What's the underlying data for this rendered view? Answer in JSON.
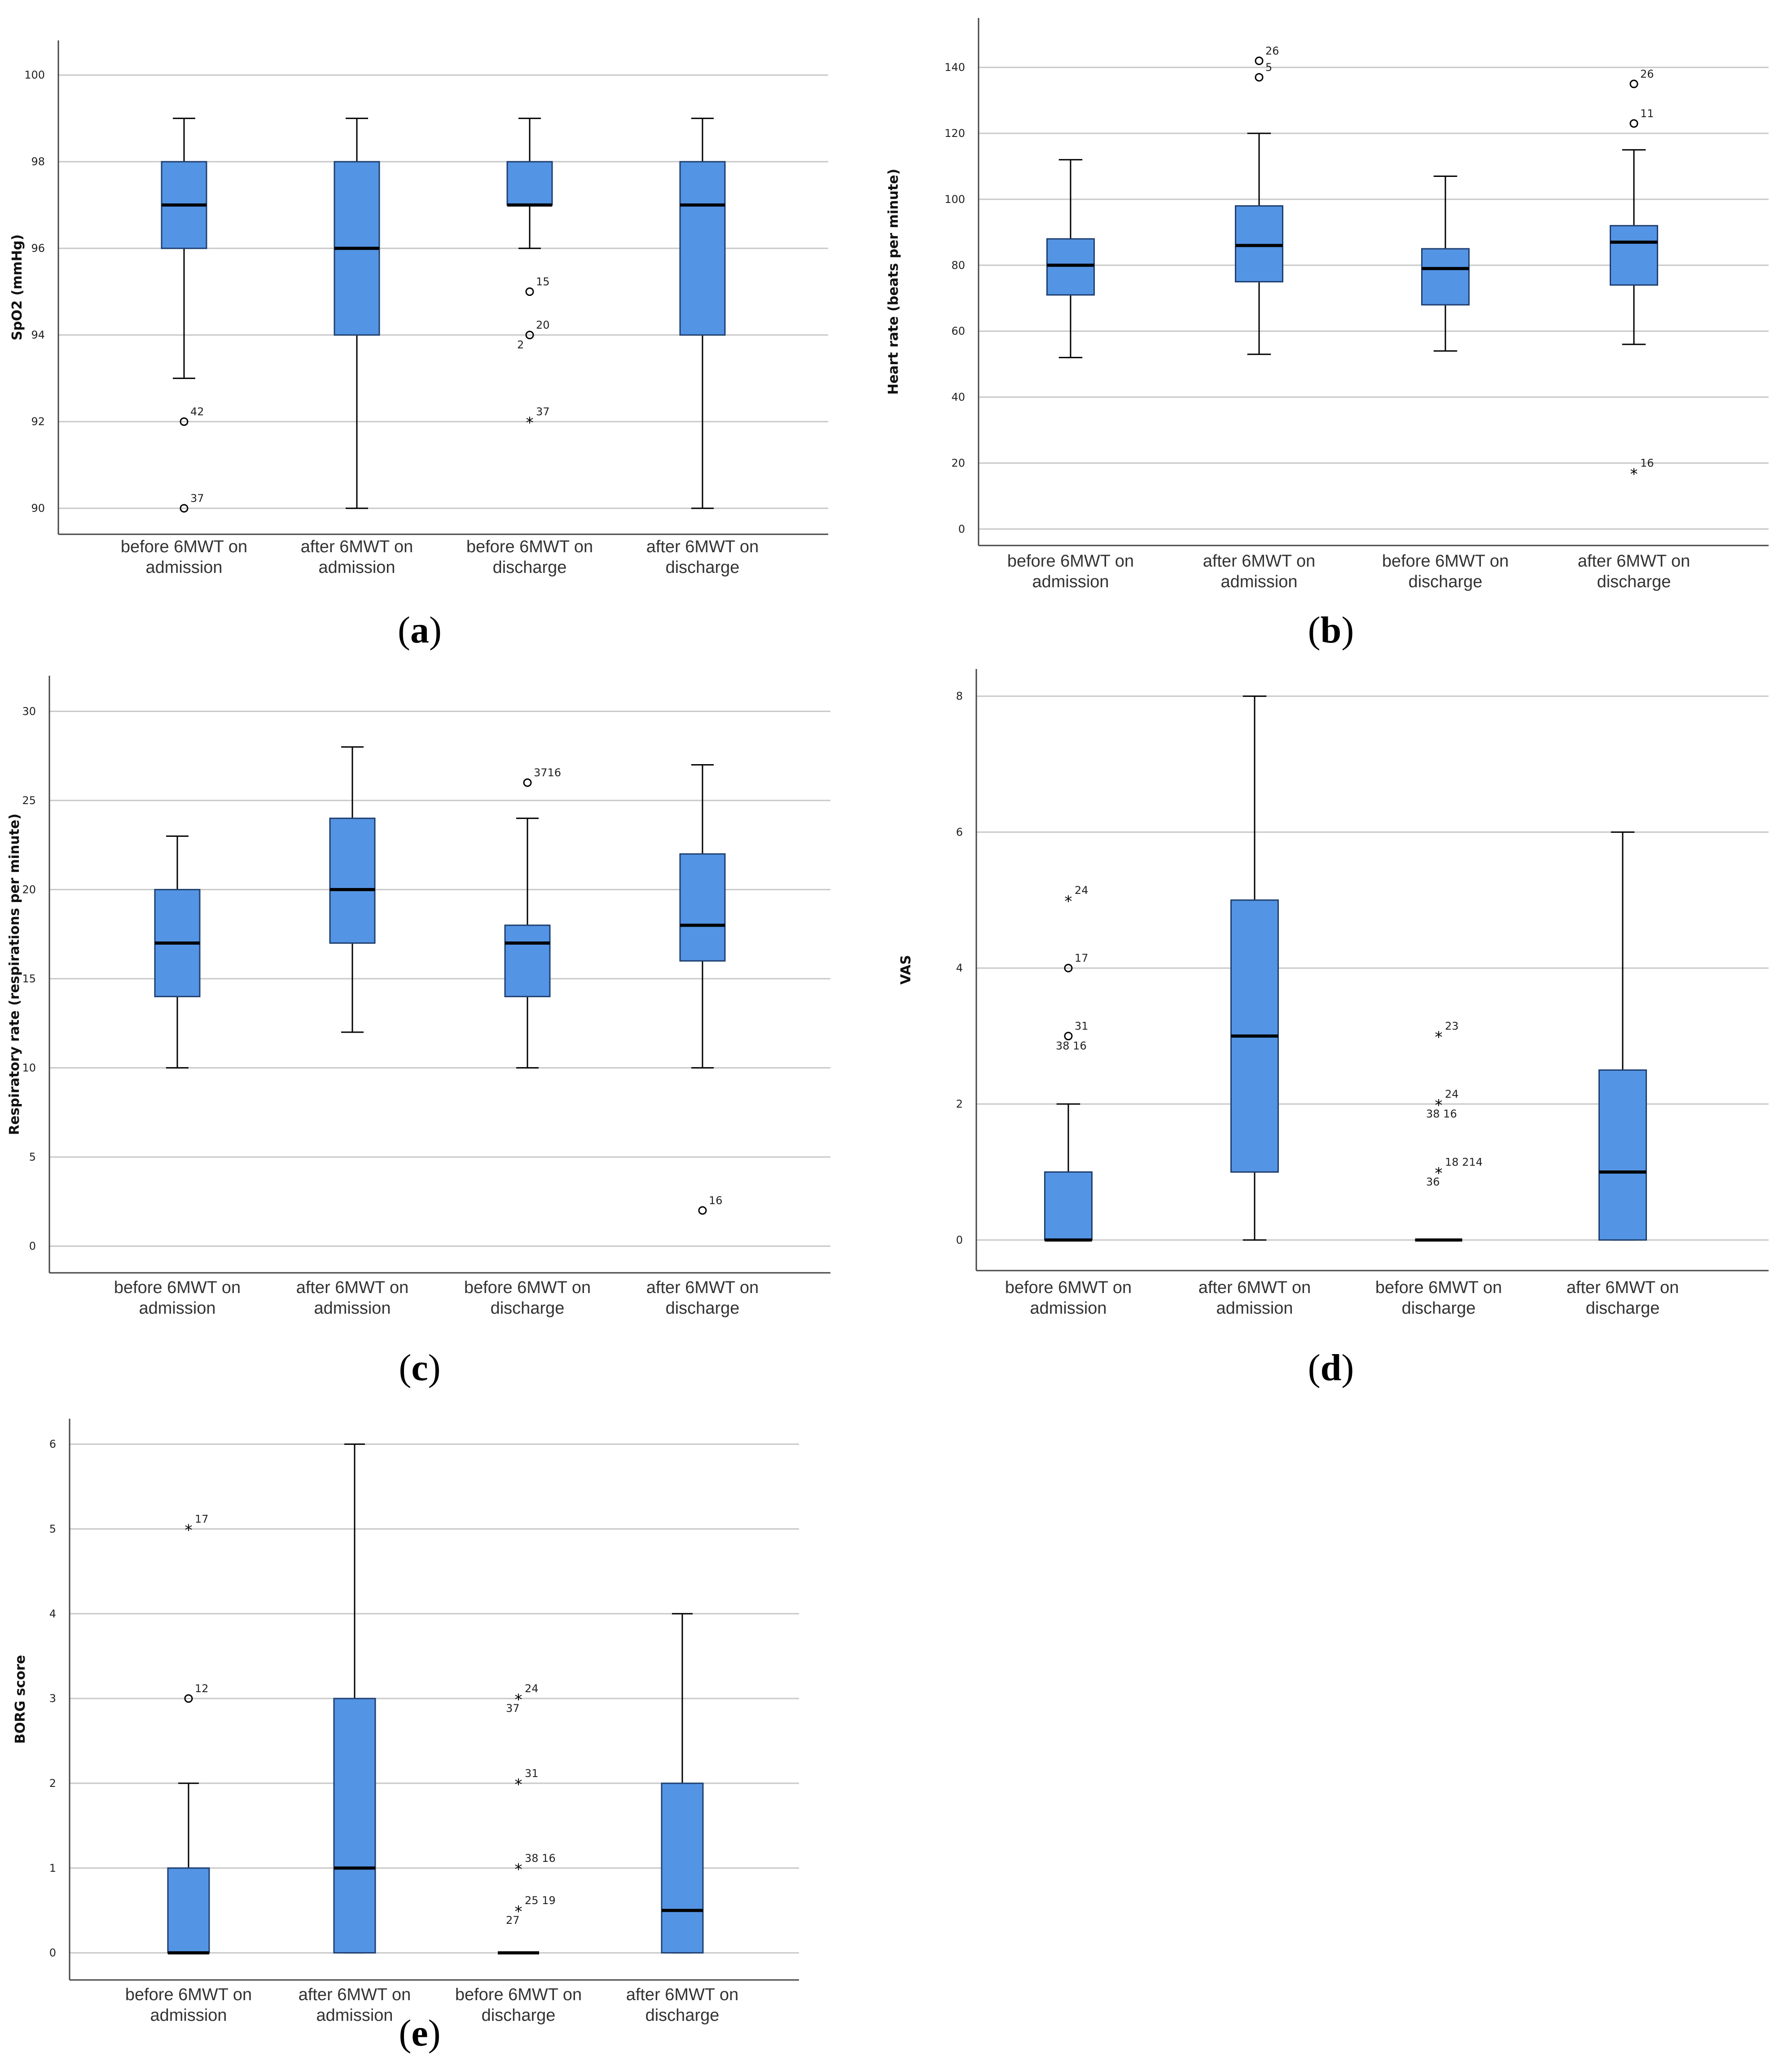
{
  "colors": {
    "box_fill": "#5494e4",
    "box_stroke": "#1f3f6f",
    "grid": "#c8c8c8",
    "axis": "#444444"
  },
  "chart_data": [
    {
      "id": "a",
      "type": "box",
      "caption": "a",
      "ylabel": "SpO2 (mmHg)",
      "ylim": [
        89.4,
        100.8
      ],
      "yticks": [
        90,
        92,
        94,
        96,
        98,
        100
      ],
      "categories": [
        "before 6MWT on admission",
        "after 6MWT on admission",
        "before 6MWT on discharge",
        "after 6MWT on discharge"
      ],
      "boxes": [
        {
          "whisker_low": 93,
          "q1": 96,
          "median": 97,
          "q3": 98,
          "whisker_high": 99,
          "outliers": [
            {
              "value": 92,
              "marker": "circle",
              "labels": [
                "42"
              ]
            },
            {
              "value": 90,
              "marker": "circle",
              "labels": [
                "37"
              ]
            }
          ]
        },
        {
          "whisker_low": 90,
          "q1": 94,
          "median": 96,
          "q3": 98,
          "whisker_high": 99,
          "outliers": []
        },
        {
          "whisker_low": 96,
          "q1": 97,
          "median": 97,
          "q3": 98,
          "whisker_high": 99,
          "outliers": [
            {
              "value": 95,
              "marker": "circle",
              "labels": [
                "15"
              ]
            },
            {
              "value": 94,
              "marker": "circle",
              "labels": [
                "20",
                "2"
              ]
            },
            {
              "value": 92,
              "marker": "star",
              "labels": [
                "37"
              ]
            }
          ]
        },
        {
          "whisker_low": 90,
          "q1": 94,
          "median": 97,
          "q3": 98,
          "whisker_high": 99,
          "outliers": []
        }
      ]
    },
    {
      "id": "b",
      "type": "box",
      "caption": "b",
      "ylabel": "Heart rate (beats per minute)",
      "ylim": [
        -5,
        155
      ],
      "yticks": [
        0,
        20,
        40,
        60,
        80,
        100,
        120,
        140
      ],
      "categories": [
        "before 6MWT on admission",
        "after 6MWT on admission",
        "before 6MWT on discharge",
        "after 6MWT on discharge"
      ],
      "boxes": [
        {
          "whisker_low": 52,
          "q1": 71,
          "median": 80,
          "q3": 88,
          "whisker_high": 112,
          "outliers": []
        },
        {
          "whisker_low": 53,
          "q1": 75,
          "median": 86,
          "q3": 98,
          "whisker_high": 120,
          "outliers": [
            {
              "value": 142,
              "marker": "circle",
              "labels": [
                "26"
              ]
            },
            {
              "value": 137,
              "marker": "circle",
              "labels": [
                "5"
              ]
            }
          ]
        },
        {
          "whisker_low": 54,
          "q1": 68,
          "median": 79,
          "q3": 85,
          "whisker_high": 107,
          "outliers": []
        },
        {
          "whisker_low": 56,
          "q1": 74,
          "median": 87,
          "q3": 92,
          "whisker_high": 115,
          "outliers": [
            {
              "value": 135,
              "marker": "circle",
              "labels": [
                "26"
              ]
            },
            {
              "value": 123,
              "marker": "circle",
              "labels": [
                "11"
              ]
            },
            {
              "value": 17,
              "marker": "star",
              "labels": [
                "16"
              ]
            }
          ]
        }
      ]
    },
    {
      "id": "c",
      "type": "box",
      "caption": "c",
      "ylabel": "Respiratory rate (respirations per minute)",
      "ylim": [
        -1.5,
        32
      ],
      "yticks": [
        0,
        5,
        10,
        15,
        20,
        25,
        30
      ],
      "categories": [
        "before 6MWT on admission",
        "after 6MWT on admission",
        "before 6MWT on discharge",
        "after 6MWT on discharge"
      ],
      "boxes": [
        {
          "whisker_low": 10,
          "q1": 14,
          "median": 17,
          "q3": 20,
          "whisker_high": 23,
          "outliers": []
        },
        {
          "whisker_low": 12,
          "q1": 17,
          "median": 20,
          "q3": 24,
          "whisker_high": 28,
          "outliers": []
        },
        {
          "whisker_low": 10,
          "q1": 14,
          "median": 17,
          "q3": 18,
          "whisker_high": 24,
          "outliers": [
            {
              "value": 26,
              "marker": "circle",
              "labels": [
                "3716"
              ]
            }
          ]
        },
        {
          "whisker_low": 10,
          "q1": 16,
          "median": 18,
          "q3": 22,
          "whisker_high": 27,
          "outliers": [
            {
              "value": 2,
              "marker": "circle",
              "labels": [
                "16"
              ]
            }
          ]
        }
      ]
    },
    {
      "id": "d",
      "type": "box",
      "caption": "d",
      "ylabel": "VAS",
      "ylim": [
        -0.45,
        8.4
      ],
      "yticks": [
        0,
        2,
        4,
        6,
        8
      ],
      "categories": [
        "before 6MWT on admission",
        "after 6MWT on admission",
        "before 6MWT on discharge",
        "after 6MWT on discharge"
      ],
      "boxes": [
        {
          "whisker_low": 0,
          "q1": 0,
          "median": 0,
          "q3": 1,
          "whisker_high": 2,
          "outliers": [
            {
              "value": 5,
              "marker": "star",
              "labels": [
                "24"
              ]
            },
            {
              "value": 4,
              "marker": "circle",
              "labels": [
                "17"
              ]
            },
            {
              "value": 3,
              "marker": "circle",
              "labels": [
                "31",
                "38 16"
              ]
            }
          ]
        },
        {
          "whisker_low": 0,
          "q1": 1,
          "median": 3,
          "q3": 5,
          "whisker_high": 8,
          "outliers": []
        },
        {
          "whisker_low": 0,
          "q1": 0,
          "median": 0,
          "q3": 0,
          "whisker_high": 0,
          "outliers": [
            {
              "value": 3,
              "marker": "star",
              "labels": [
                "23"
              ]
            },
            {
              "value": 2,
              "marker": "star",
              "labels": [
                "24",
                "38 16"
              ]
            },
            {
              "value": 1,
              "marker": "star",
              "labels": [
                "18 214",
                "36"
              ]
            }
          ]
        },
        {
          "whisker_low": 0,
          "q1": 0,
          "median": 1,
          "q3": 2.5,
          "whisker_high": 6,
          "outliers": []
        }
      ]
    },
    {
      "id": "e",
      "type": "box",
      "caption": "e",
      "ylabel": "BORG score",
      "ylim": [
        -0.32,
        6.3
      ],
      "yticks": [
        0,
        1,
        2,
        3,
        4,
        5,
        6
      ],
      "categories": [
        "before 6MWT on admission",
        "after 6MWT on admission",
        "before 6MWT on discharge",
        "after 6MWT on discharge"
      ],
      "boxes": [
        {
          "whisker_low": 0,
          "q1": 0,
          "median": 0,
          "q3": 1,
          "whisker_high": 2,
          "outliers": [
            {
              "value": 5,
              "marker": "star",
              "labels": [
                "17"
              ]
            },
            {
              "value": 3,
              "marker": "circle",
              "labels": [
                "12"
              ]
            }
          ]
        },
        {
          "whisker_low": 0,
          "q1": 0,
          "median": 1,
          "q3": 3,
          "whisker_high": 6,
          "outliers": []
        },
        {
          "whisker_low": 0,
          "q1": 0,
          "median": 0,
          "q3": 0,
          "whisker_high": 0,
          "outliers": [
            {
              "value": 3,
              "marker": "star",
              "labels": [
                "24",
                "37"
              ]
            },
            {
              "value": 2,
              "marker": "star",
              "labels": [
                "31"
              ]
            },
            {
              "value": 1,
              "marker": "star",
              "labels": [
                "38 16"
              ]
            },
            {
              "value": 0.5,
              "marker": "star",
              "labels": [
                "25 19",
                "27"
              ]
            }
          ]
        },
        {
          "whisker_low": 0,
          "q1": 0,
          "median": 0.5,
          "q3": 2,
          "whisker_high": 4,
          "outliers": []
        }
      ]
    }
  ]
}
